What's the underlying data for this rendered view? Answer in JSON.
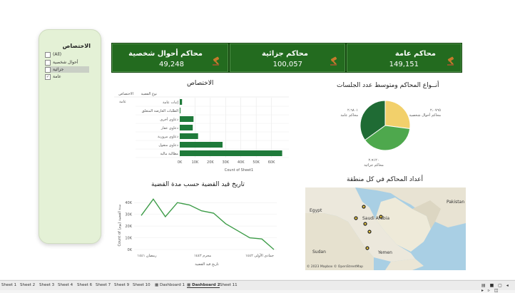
{
  "filter": {
    "title": "الاختصاص",
    "options": [
      {
        "label": "(All)",
        "checked": false
      },
      {
        "label": "أحوال شخصية",
        "checked": false
      },
      {
        "label": "جزائية",
        "checked": false
      },
      {
        "label": "عامة",
        "checked": true
      }
    ]
  },
  "kpis": [
    {
      "title": "محاكم عامة",
      "value": "149,151"
    },
    {
      "title": "محاكم جزائية",
      "value": "100,057"
    },
    {
      "title": "محاكم أحوال شخصية",
      "value": "49,248"
    }
  ],
  "bar_section": {
    "title": "الاختصاص",
    "col_header_1": "الاختصاص",
    "col_header_2": "نوع القضية",
    "row_group": "عامة",
    "x_axis_title": "Count of Sheet1"
  },
  "pie_section": {
    "title": "أنــواع المحاكم ومتوسط عدد الجلسات",
    "labels": [
      {
        "value": "٢،٠٧٦٥",
        "name": "محاكم أحوال شخصية"
      },
      {
        "value": "٢،٩١٢٠",
        "name": "محاكم جزائية"
      },
      {
        "value": "٢،٦٨٠١",
        "name": "محاكم عامة"
      }
    ]
  },
  "line_section": {
    "title": "تاريخ قيد القضية حسب مدة القضية",
    "y_axis_title": "Count of مدة القضية (يوم)",
    "x_axis_title": "تاريخ قيد القضية"
  },
  "map_section": {
    "title": "أعداد المحاكم في كل منطقة",
    "place_labels": [
      "Egypt",
      "Saudi Arabia",
      "Sudan",
      "Yemen",
      "Pakistan"
    ],
    "credit": "© 2023 Mapbox © OpenStreetMap"
  },
  "tabs": [
    "Sheet 1",
    "Sheet 2",
    "Sheet 3",
    "Sheet 4",
    "Sheet 6",
    "Sheet 7",
    "Sheet 9",
    "Sheet 10",
    "Dashboard 1",
    "Dashboard 2",
    "Sheet 11"
  ],
  "active_tab": "Dashboard 2",
  "chart_data": [
    {
      "type": "bar",
      "orientation": "horizontal",
      "categories": [
        "إثبات عامة",
        "الطلبات العارضة المتعلق",
        "دعاوى أخرى",
        "دعاوى عقار",
        "دعاوى مرورية",
        "دعاوى منقول",
        "مطالبة مالية"
      ],
      "values": [
        1500,
        200,
        9000,
        8500,
        12000,
        28000,
        67000
      ],
      "x_ticks": [
        "0K",
        "10K",
        "20K",
        "30K",
        "40K",
        "50K",
        "60K"
      ],
      "xlim": [
        0,
        70000
      ],
      "colors": {
        "bar": "#1f7a3a"
      }
    },
    {
      "type": "pie",
      "categories": [
        "محاكم أحوال شخصية",
        "محاكم جزائية",
        "محاكم عامة"
      ],
      "values": [
        2.0765,
        2.912,
        2.6801
      ],
      "colors": [
        "#f2d06b",
        "#4ea84d",
        "#1f6b34"
      ]
    },
    {
      "type": "line",
      "x_ticks": [
        "رمضان ١٤٤١",
        "محرم ١٤٤٢",
        "جمادى الأولى ١٤٤٢"
      ],
      "y_ticks": [
        "0K",
        "10K",
        "20K",
        "30K",
        "40K"
      ],
      "values": [
        29000,
        43000,
        28000,
        40000,
        38000,
        33000,
        31000,
        22000,
        16000,
        10000,
        9000,
        0
      ],
      "ylim": [
        0,
        45000
      ],
      "colors": {
        "line": "#3d9c48"
      }
    }
  ]
}
